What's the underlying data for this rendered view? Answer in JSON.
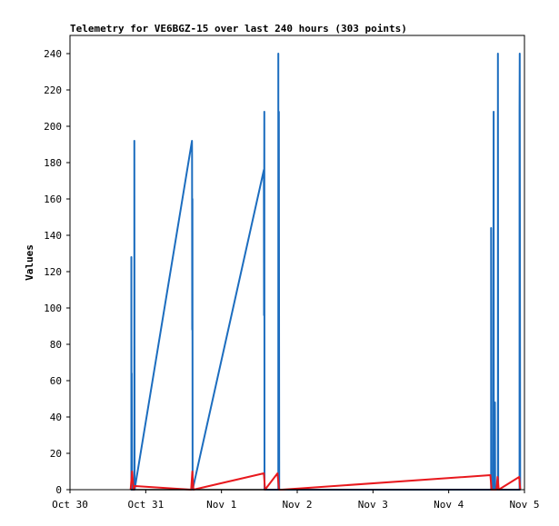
{
  "chart_data": {
    "type": "line",
    "title": "Telemetry for VE6BGZ-15 over last 240 hours (303 points)",
    "xlabel": "",
    "ylabel": "Values",
    "x_ticks": [
      "Oct 30",
      "Oct 31",
      "Nov 1",
      "Nov 2",
      "Nov 3",
      "Nov 4",
      "Nov 5"
    ],
    "xlim": [
      0,
      6
    ],
    "ylim": [
      0,
      250
    ],
    "y_ticks": [
      0,
      20,
      40,
      60,
      80,
      100,
      120,
      140,
      160,
      180,
      200,
      220,
      240
    ],
    "grid": false,
    "series": [
      {
        "color": "#1c6dbf",
        "points": [
          [
            0.81,
            0
          ],
          [
            0.81,
            128
          ],
          [
            0.812,
            0
          ],
          [
            0.815,
            64
          ],
          [
            0.818,
            0
          ],
          [
            0.85,
            0
          ],
          [
            0.85,
            192
          ],
          [
            0.853,
            0
          ],
          [
            1.61,
            192
          ],
          [
            1.612,
            184
          ],
          [
            1.614,
            88
          ],
          [
            1.616,
            160
          ],
          [
            1.619,
            0
          ],
          [
            2.56,
            176
          ],
          [
            2.562,
            96
          ],
          [
            2.565,
            208
          ],
          [
            2.568,
            0
          ],
          [
            2.75,
            0
          ],
          [
            2.75,
            240
          ],
          [
            2.753,
            0
          ],
          [
            2.758,
            208
          ],
          [
            2.762,
            0
          ],
          [
            5.56,
            0
          ],
          [
            5.56,
            144
          ],
          [
            5.562,
            80
          ],
          [
            5.565,
            0
          ],
          [
            5.59,
            0
          ],
          [
            5.59,
            96
          ],
          [
            5.593,
            208
          ],
          [
            5.596,
            0
          ],
          [
            5.61,
            48
          ],
          [
            5.613,
            0
          ],
          [
            5.65,
            0
          ],
          [
            5.65,
            240
          ],
          [
            5.653,
            0
          ],
          [
            5.935,
            0
          ],
          [
            5.935,
            208
          ],
          [
            5.938,
            240
          ],
          [
            5.941,
            96
          ],
          [
            5.944,
            0
          ]
        ]
      },
      {
        "color": "#e8191e",
        "points": [
          [
            0.8,
            0
          ],
          [
            0.82,
            10
          ],
          [
            0.84,
            0
          ],
          [
            0.855,
            2
          ],
          [
            1.6,
            0
          ],
          [
            1.615,
            10
          ],
          [
            1.63,
            0
          ],
          [
            2.56,
            9
          ],
          [
            2.575,
            0
          ],
          [
            2.74,
            9
          ],
          [
            2.76,
            0
          ],
          [
            2.8,
            0
          ],
          [
            5.55,
            8
          ],
          [
            5.565,
            0
          ],
          [
            5.63,
            0
          ],
          [
            5.645,
            7
          ],
          [
            5.66,
            0
          ],
          [
            5.93,
            7
          ],
          [
            5.945,
            0
          ]
        ]
      },
      {
        "color": "#000000",
        "points": [
          [
            0.8,
            0
          ],
          [
            0.86,
            0
          ],
          [
            1.6,
            0
          ],
          [
            1.62,
            0
          ],
          [
            2.56,
            0
          ],
          [
            2.6,
            0
          ],
          [
            2.74,
            0
          ],
          [
            2.78,
            0
          ],
          [
            5.55,
            0
          ],
          [
            5.66,
            0
          ],
          [
            5.93,
            0
          ],
          [
            5.95,
            0
          ]
        ]
      }
    ]
  }
}
